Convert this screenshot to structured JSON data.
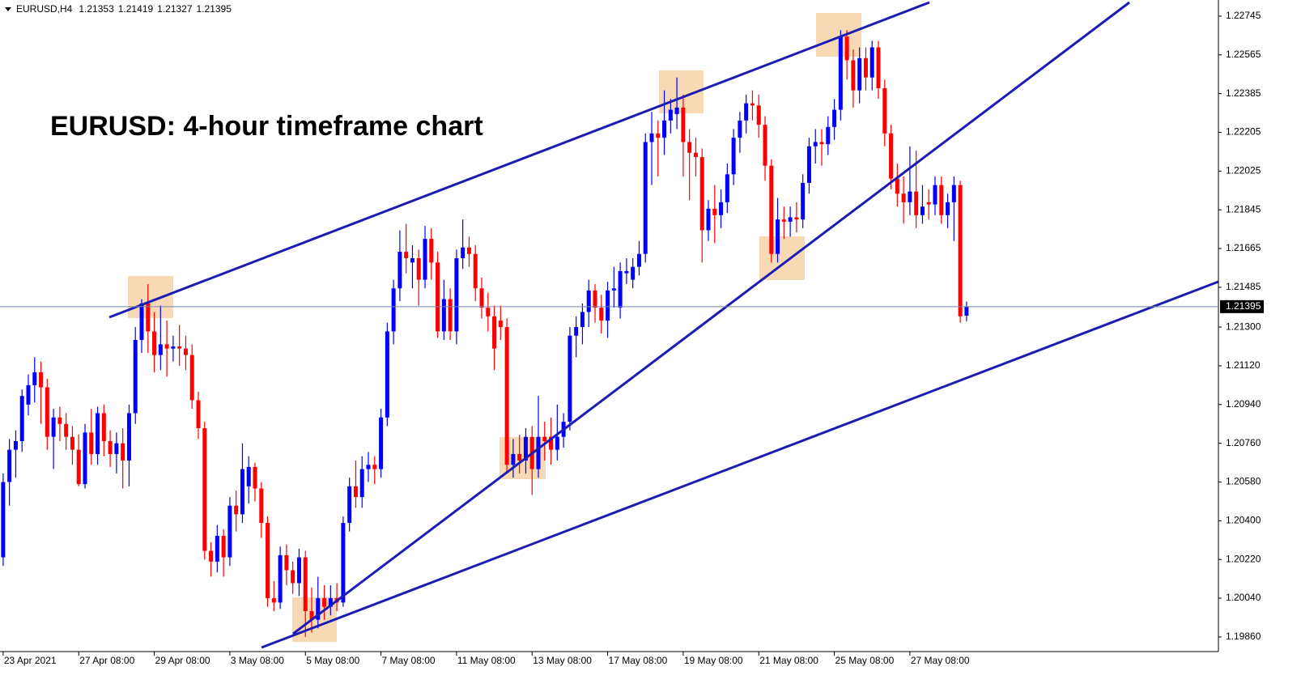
{
  "chart_data": {
    "type": "candlestick",
    "symbol": "EURUSD,H4",
    "title": "EURUSD: 4-hour timeframe chart",
    "up_color": "#0000ff",
    "down_color": "#ff0000",
    "open": [
      1.2023,
      1.2058,
      1.2073,
      1.2077,
      1.2094,
      1.2103,
      1.2109,
      1.2102,
      1.2079,
      1.2088,
      1.2085,
      1.2079,
      1.2073,
      1.2057,
      1.2081,
      1.2071,
      1.209,
      1.2077,
      1.2071,
      1.2076,
      1.2068,
      1.209,
      1.2124,
      1.2141,
      1.2128,
      1.2117,
      1.2122,
      1.212,
      1.2121,
      1.212,
      1.2117,
      1.2096,
      1.2083,
      1.2026,
      1.2021,
      1.2033,
      1.2023,
      1.2047,
      1.2043,
      1.2056,
      1.2065,
      1.2055,
      1.2039,
      1.2004,
      1.2002,
      1.2024,
      1.2017,
      1.2011,
      1.2023,
      1.1998,
      1.1994,
      1.2004,
      1.2,
      1.2004,
      1.2002,
      1.2039,
      1.2056,
      1.2051,
      1.2064,
      1.2066,
      1.2064,
      1.2088,
      1.2128,
      1.2148,
      1.2165,
      1.216,
      1.2162,
      1.2152,
      1.2171,
      1.216,
      1.2128,
      1.2143,
      1.2128,
      1.2162,
      1.2167,
      1.2164,
      1.2148,
      1.2139,
      1.2135,
      1.2133,
      1.213,
      1.2066,
      1.2071,
      1.2068,
      1.2079,
      1.2064,
      1.2079,
      1.2079,
      1.2073,
      1.2079,
      1.2086,
      1.2126,
      1.213,
      1.2137,
      1.2147,
      1.2139,
      1.2133,
      1.2147,
      1.2139,
      1.2155,
      1.2152,
      1.2158,
      1.2164,
      1.2216,
      1.222,
      1.2218,
      1.2226,
      1.2229,
      1.2232,
      1.2216,
      1.2211,
      1.2209,
      1.2175,
      1.2185,
      1.2182,
      1.2188,
      1.2201,
      1.2218,
      1.2226,
      1.2234,
      1.2233,
      1.2224,
      1.2205,
      1.2164,
      1.218,
      1.2179,
      1.2181,
      1.218,
      1.2197,
      1.2214,
      1.2216,
      1.2215,
      1.2223,
      1.2231,
      1.2265,
      1.2254,
      1.224,
      1.2255,
      1.2246,
      1.226,
      1.2241,
      1.222,
      1.2199,
      1.2192,
      1.2188,
      1.2193,
      1.2182,
      1.2188,
      1.2187,
      1.2196,
      1.2182,
      1.2188,
      1.2196,
      1.21353
    ],
    "high": [
      1.2062,
      1.2078,
      1.2082,
      1.2101,
      1.2108,
      1.2116,
      1.2114,
      1.2106,
      1.2092,
      1.2093,
      1.209,
      1.2084,
      1.208,
      1.2085,
      1.2092,
      1.2093,
      1.2094,
      1.2082,
      1.2081,
      1.2083,
      1.2094,
      1.213,
      1.2143,
      1.215,
      1.2137,
      1.214,
      1.2133,
      1.2126,
      1.2131,
      1.2126,
      1.2122,
      1.21,
      1.2086,
      1.203,
      1.2038,
      1.2036,
      1.2051,
      1.2054,
      1.2076,
      1.207,
      1.2067,
      1.2058,
      1.2042,
      1.2012,
      1.2028,
      1.2029,
      1.2021,
      1.2027,
      1.2026,
      1.2009,
      1.2014,
      1.201,
      1.201,
      1.2011,
      1.2042,
      1.206,
      1.2068,
      1.207,
      1.2072,
      1.207,
      1.2092,
      1.2132,
      1.2152,
      1.2175,
      1.2178,
      1.2168,
      1.2166,
      1.2177,
      1.2176,
      1.2165,
      1.2152,
      1.2148,
      1.2166,
      1.218,
      1.2172,
      1.2168,
      1.2153,
      1.2146,
      1.214,
      1.214,
      1.2134,
      1.2078,
      1.208,
      1.2083,
      1.2084,
      1.2098,
      1.2086,
      1.2088,
      1.2094,
      1.209,
      1.213,
      1.2135,
      1.2141,
      1.2152,
      1.215,
      1.2145,
      1.2151,
      1.2158,
      1.216,
      1.2162,
      1.2162,
      1.217,
      1.222,
      1.223,
      1.2226,
      1.224,
      1.2236,
      1.2246,
      1.2238,
      1.2222,
      1.2218,
      1.2213,
      1.2189,
      1.2196,
      1.2194,
      1.2206,
      1.2222,
      1.223,
      1.2238,
      1.224,
      1.2238,
      1.2228,
      1.2208,
      1.219,
      1.2186,
      1.2186,
      1.2188,
      1.2201,
      1.2218,
      1.2222,
      1.2222,
      1.2228,
      1.2236,
      1.2268,
      1.2268,
      1.2259,
      1.226,
      1.226,
      1.2263,
      1.2263,
      1.2245,
      1.2224,
      1.2206,
      1.22,
      1.2214,
      1.2212,
      1.2196,
      1.2194,
      1.22,
      1.22,
      1.2192,
      1.22,
      1.2198,
      1.21419
    ],
    "low": [
      1.2019,
      1.2047,
      1.206,
      1.2072,
      1.2089,
      1.2095,
      1.2085,
      1.2073,
      1.2064,
      1.2077,
      1.2073,
      1.2066,
      1.2056,
      1.2055,
      1.2066,
      1.2066,
      1.207,
      1.2065,
      1.2062,
      1.2055,
      1.2056,
      1.2085,
      1.2118,
      1.2118,
      1.2109,
      1.211,
      1.2107,
      1.2114,
      1.2112,
      1.211,
      1.2092,
      1.2078,
      1.2022,
      1.2014,
      1.2016,
      1.2014,
      1.2019,
      1.2035,
      1.2039,
      1.2048,
      1.2049,
      1.2032,
      1.2,
      1.1998,
      1.1999,
      1.201,
      1.2006,
      1.2005,
      1.1986,
      1.1988,
      1.199,
      1.1994,
      1.1996,
      1.1998,
      1.2,
      1.2035,
      1.2046,
      1.2046,
      1.2058,
      1.2057,
      1.206,
      1.2084,
      1.2122,
      1.2142,
      1.2155,
      1.2148,
      1.214,
      1.2148,
      1.2152,
      1.2125,
      1.2124,
      1.2124,
      1.2122,
      1.2157,
      1.2158,
      1.2142,
      1.2134,
      1.2128,
      1.211,
      1.2124,
      1.2062,
      1.206,
      1.2062,
      1.2062,
      1.2052,
      1.206,
      1.2068,
      1.2066,
      1.2068,
      1.2074,
      1.2082,
      1.2116,
      1.2122,
      1.213,
      1.2132,
      1.2127,
      1.2125,
      1.2139,
      1.2134,
      1.215,
      1.2148,
      1.2154,
      1.216,
      1.2196,
      1.22,
      1.221,
      1.222,
      1.2222,
      1.22,
      1.2189,
      1.22,
      1.216,
      1.217,
      1.2169,
      1.2176,
      1.2183,
      1.2196,
      1.2211,
      1.222,
      1.2226,
      1.2218,
      1.2198,
      1.216,
      1.216,
      1.2171,
      1.2172,
      1.2174,
      1.2176,
      1.2192,
      1.2206,
      1.2205,
      1.221,
      1.2217,
      1.2226,
      1.2245,
      1.2232,
      1.2234,
      1.224,
      1.224,
      1.2236,
      1.2214,
      1.2194,
      1.2186,
      1.2178,
      1.2182,
      1.2176,
      1.2178,
      1.218,
      1.2182,
      1.2178,
      1.2176,
      1.217,
      1.2132,
      1.21327
    ],
    "close": [
      1.2058,
      1.2073,
      1.2077,
      1.2098,
      1.2103,
      1.2109,
      1.2102,
      1.2079,
      1.2088,
      1.2085,
      1.2079,
      1.2073,
      1.2057,
      1.2081,
      1.2071,
      1.209,
      1.2077,
      1.2071,
      1.2076,
      1.2068,
      1.209,
      1.2124,
      1.2141,
      1.2128,
      1.2117,
      1.2122,
      1.212,
      1.2121,
      1.212,
      1.2117,
      1.2096,
      1.2083,
      1.2026,
      1.2021,
      1.2033,
      1.2023,
      1.2047,
      1.2043,
      1.2064,
      1.2065,
      1.2055,
      1.2039,
      1.2004,
      1.2002,
      1.2024,
      1.2017,
      1.2011,
      1.2023,
      1.1998,
      1.1994,
      1.2004,
      1.2,
      1.2004,
      1.2002,
      1.2039,
      1.2056,
      1.2051,
      1.2064,
      1.2066,
      1.2064,
      1.2088,
      1.2128,
      1.2148,
      1.2165,
      1.2162,
      1.2162,
      1.2152,
      1.2171,
      1.216,
      1.2128,
      1.2143,
      1.2128,
      1.2162,
      1.2167,
      1.2164,
      1.2148,
      1.2139,
      1.2135,
      1.212,
      1.213,
      1.2066,
      1.2071,
      1.2068,
      1.2079,
      1.2064,
      1.2079,
      1.2077,
      1.2073,
      1.2079,
      1.2086,
      1.2126,
      1.213,
      1.2137,
      1.2147,
      1.2139,
      1.2133,
      1.2147,
      1.2148,
      1.2156,
      1.2156,
      1.2158,
      1.2164,
      1.2216,
      1.222,
      1.2218,
      1.2226,
      1.2231,
      1.2232,
      1.2216,
      1.2211,
      1.2209,
      1.2175,
      1.2185,
      1.2182,
      1.2188,
      1.2201,
      1.2218,
      1.2226,
      1.2234,
      1.2233,
      1.2224,
      1.2205,
      1.2164,
      1.218,
      1.2179,
      1.2181,
      1.218,
      1.2197,
      1.2214,
      1.2216,
      1.2215,
      1.2223,
      1.2231,
      1.2265,
      1.2254,
      1.224,
      1.2255,
      1.2246,
      1.226,
      1.2241,
      1.222,
      1.2199,
      1.2192,
      1.2188,
      1.2193,
      1.2182,
      1.2186,
      1.2187,
      1.2196,
      1.2182,
      1.2188,
      1.2196,
      1.2135,
      1.21395
    ],
    "ylim": [
      1.19792,
      1.2282
    ],
    "yticks": [
      1.22745,
      1.22565,
      1.22385,
      1.22205,
      1.22025,
      1.21845,
      1.21665,
      1.21485,
      {
        "value": 1.213,
        "label": "1.21300"
      },
      {
        "value": 1.2112,
        "label": "1.21120"
      },
      {
        "value": 1.2094,
        "label": "1.20940"
      },
      {
        "value": 1.2076,
        "label": "1.20760"
      },
      {
        "value": 1.2058,
        "label": "1.20580"
      },
      {
        "value": 1.204,
        "label": "1.20400"
      },
      {
        "value": 1.2022,
        "label": "1.20220"
      },
      {
        "value": 1.2004,
        "label": "1.20040"
      },
      {
        "value": 1.1986,
        "label": "1.19860"
      }
    ],
    "xlim": [
      -0.5,
      193
    ],
    "xticks": [
      {
        "value": 0,
        "label": "23 Apr 2021"
      },
      {
        "value": 12,
        "label": "27 Apr 08:00"
      },
      {
        "value": 24,
        "label": "29 Apr 08:00"
      },
      {
        "value": 36,
        "label": "3 May 08:00"
      },
      {
        "value": 48,
        "label": "5 May 08:00"
      },
      {
        "value": 60,
        "label": "7 May 08:00"
      },
      {
        "value": 72,
        "label": "11 May 08:00"
      },
      {
        "value": 84,
        "label": "13 May 08:00"
      },
      {
        "value": 96,
        "label": "17 May 08:00"
      },
      {
        "value": 108,
        "label": "19 May 08:00"
      },
      {
        "value": 120,
        "label": "21 May 08:00"
      },
      {
        "value": 132,
        "label": "25 May 08:00"
      },
      {
        "value": 144,
        "label": "27 May 08:00"
      }
    ],
    "grid": false
  }
}
